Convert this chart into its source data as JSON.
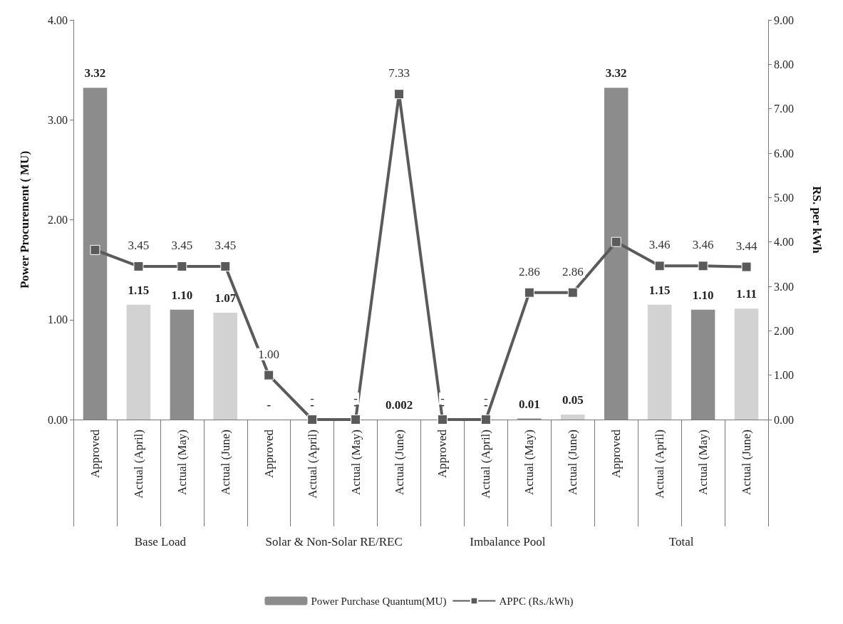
{
  "chart_data": {
    "type": "bar",
    "ylabel": "Power Procurement ( MU)",
    "y2label": "RS. per kWh",
    "categories": [
      "Approved",
      "Actual (April)",
      "Actual (May)",
      "Actual (June)",
      "Approved",
      "Actual (April)",
      "Actual (May)",
      "Actual (June)",
      "Approved",
      "Actual (April)",
      "Actual (May)",
      "Actual (June)",
      "Approved",
      "Actual (April)",
      "Actual (May)",
      "Actual (June)"
    ],
    "annotations": [
      "Base Load",
      "Solar & Non-Solar RE/REC",
      "Imbalance Pool",
      "Total"
    ],
    "series": [
      {
        "name": "Power Purchase Quantum(MU)",
        "color": "#8c8c8c",
        "colors": [
          "#8c8c8c",
          "#d2d2d2",
          "#8c8c8c",
          "#d2d2d2",
          "#8c8c8c",
          "#d2d2d2",
          "#8c8c8c",
          "#d2d2d2",
          "#8c8c8c",
          "#d2d2d2",
          "#8c8c8c",
          "#d2d2d2",
          "#8c8c8c",
          "#d2d2d2",
          "#8c8c8c",
          "#d2d2d2"
        ],
        "values": [
          3.32,
          1.15,
          1.1,
          1.07,
          0,
          0,
          0,
          0.002,
          0,
          0,
          0.01,
          0.05,
          3.32,
          1.15,
          1.1,
          1.11
        ],
        "value_labels": [
          "3.32",
          "1.15",
          "1.10",
          "1.07",
          "-",
          "-",
          "-",
          "0.002",
          "-",
          "-",
          "0.01",
          "0.05",
          "3.32",
          "1.15",
          "1.10",
          "1.11"
        ]
      },
      {
        "name": "APPC (Rs./kWh)",
        "type": "line",
        "axis": "y2",
        "color": "#5a5a5a",
        "values": [
          3.82,
          3.45,
          3.45,
          3.45,
          1.0,
          0,
          0,
          7.33,
          0,
          0,
          2.86,
          2.86,
          4.0,
          3.46,
          3.46,
          3.44
        ],
        "value_labels": [
          null,
          "3.45",
          "3.45",
          "3.45",
          "1.00",
          "-",
          "-",
          "7.33",
          "-",
          "-",
          "2.86",
          "2.86",
          null,
          "3.46",
          "3.46",
          "3.44"
        ]
      }
    ],
    "ylim": [
      0,
      4
    ],
    "yticks": [
      {
        "value": 0,
        "label": "0.00"
      },
      {
        "value": 1,
        "label": "1.00"
      },
      {
        "value": 2,
        "label": "2.00"
      },
      {
        "value": 3,
        "label": "3.00"
      },
      {
        "value": 4,
        "label": "4.00"
      }
    ],
    "y2lim": [
      0,
      9
    ],
    "y2ticks": [
      {
        "value": 0,
        "label": "0.00"
      },
      {
        "value": 1,
        "label": "1.00"
      },
      {
        "value": 2,
        "label": "2.00"
      },
      {
        "value": 3,
        "label": "3.00"
      },
      {
        "value": 4,
        "label": "4.00"
      },
      {
        "value": 5,
        "label": "5.00"
      },
      {
        "value": 6,
        "label": "6.00"
      },
      {
        "value": 7,
        "label": "7.00"
      },
      {
        "value": 8,
        "label": "8.00"
      },
      {
        "value": 9,
        "label": "9.00"
      }
    ],
    "marker": "square",
    "legend": "bottom",
    "grid": false
  }
}
